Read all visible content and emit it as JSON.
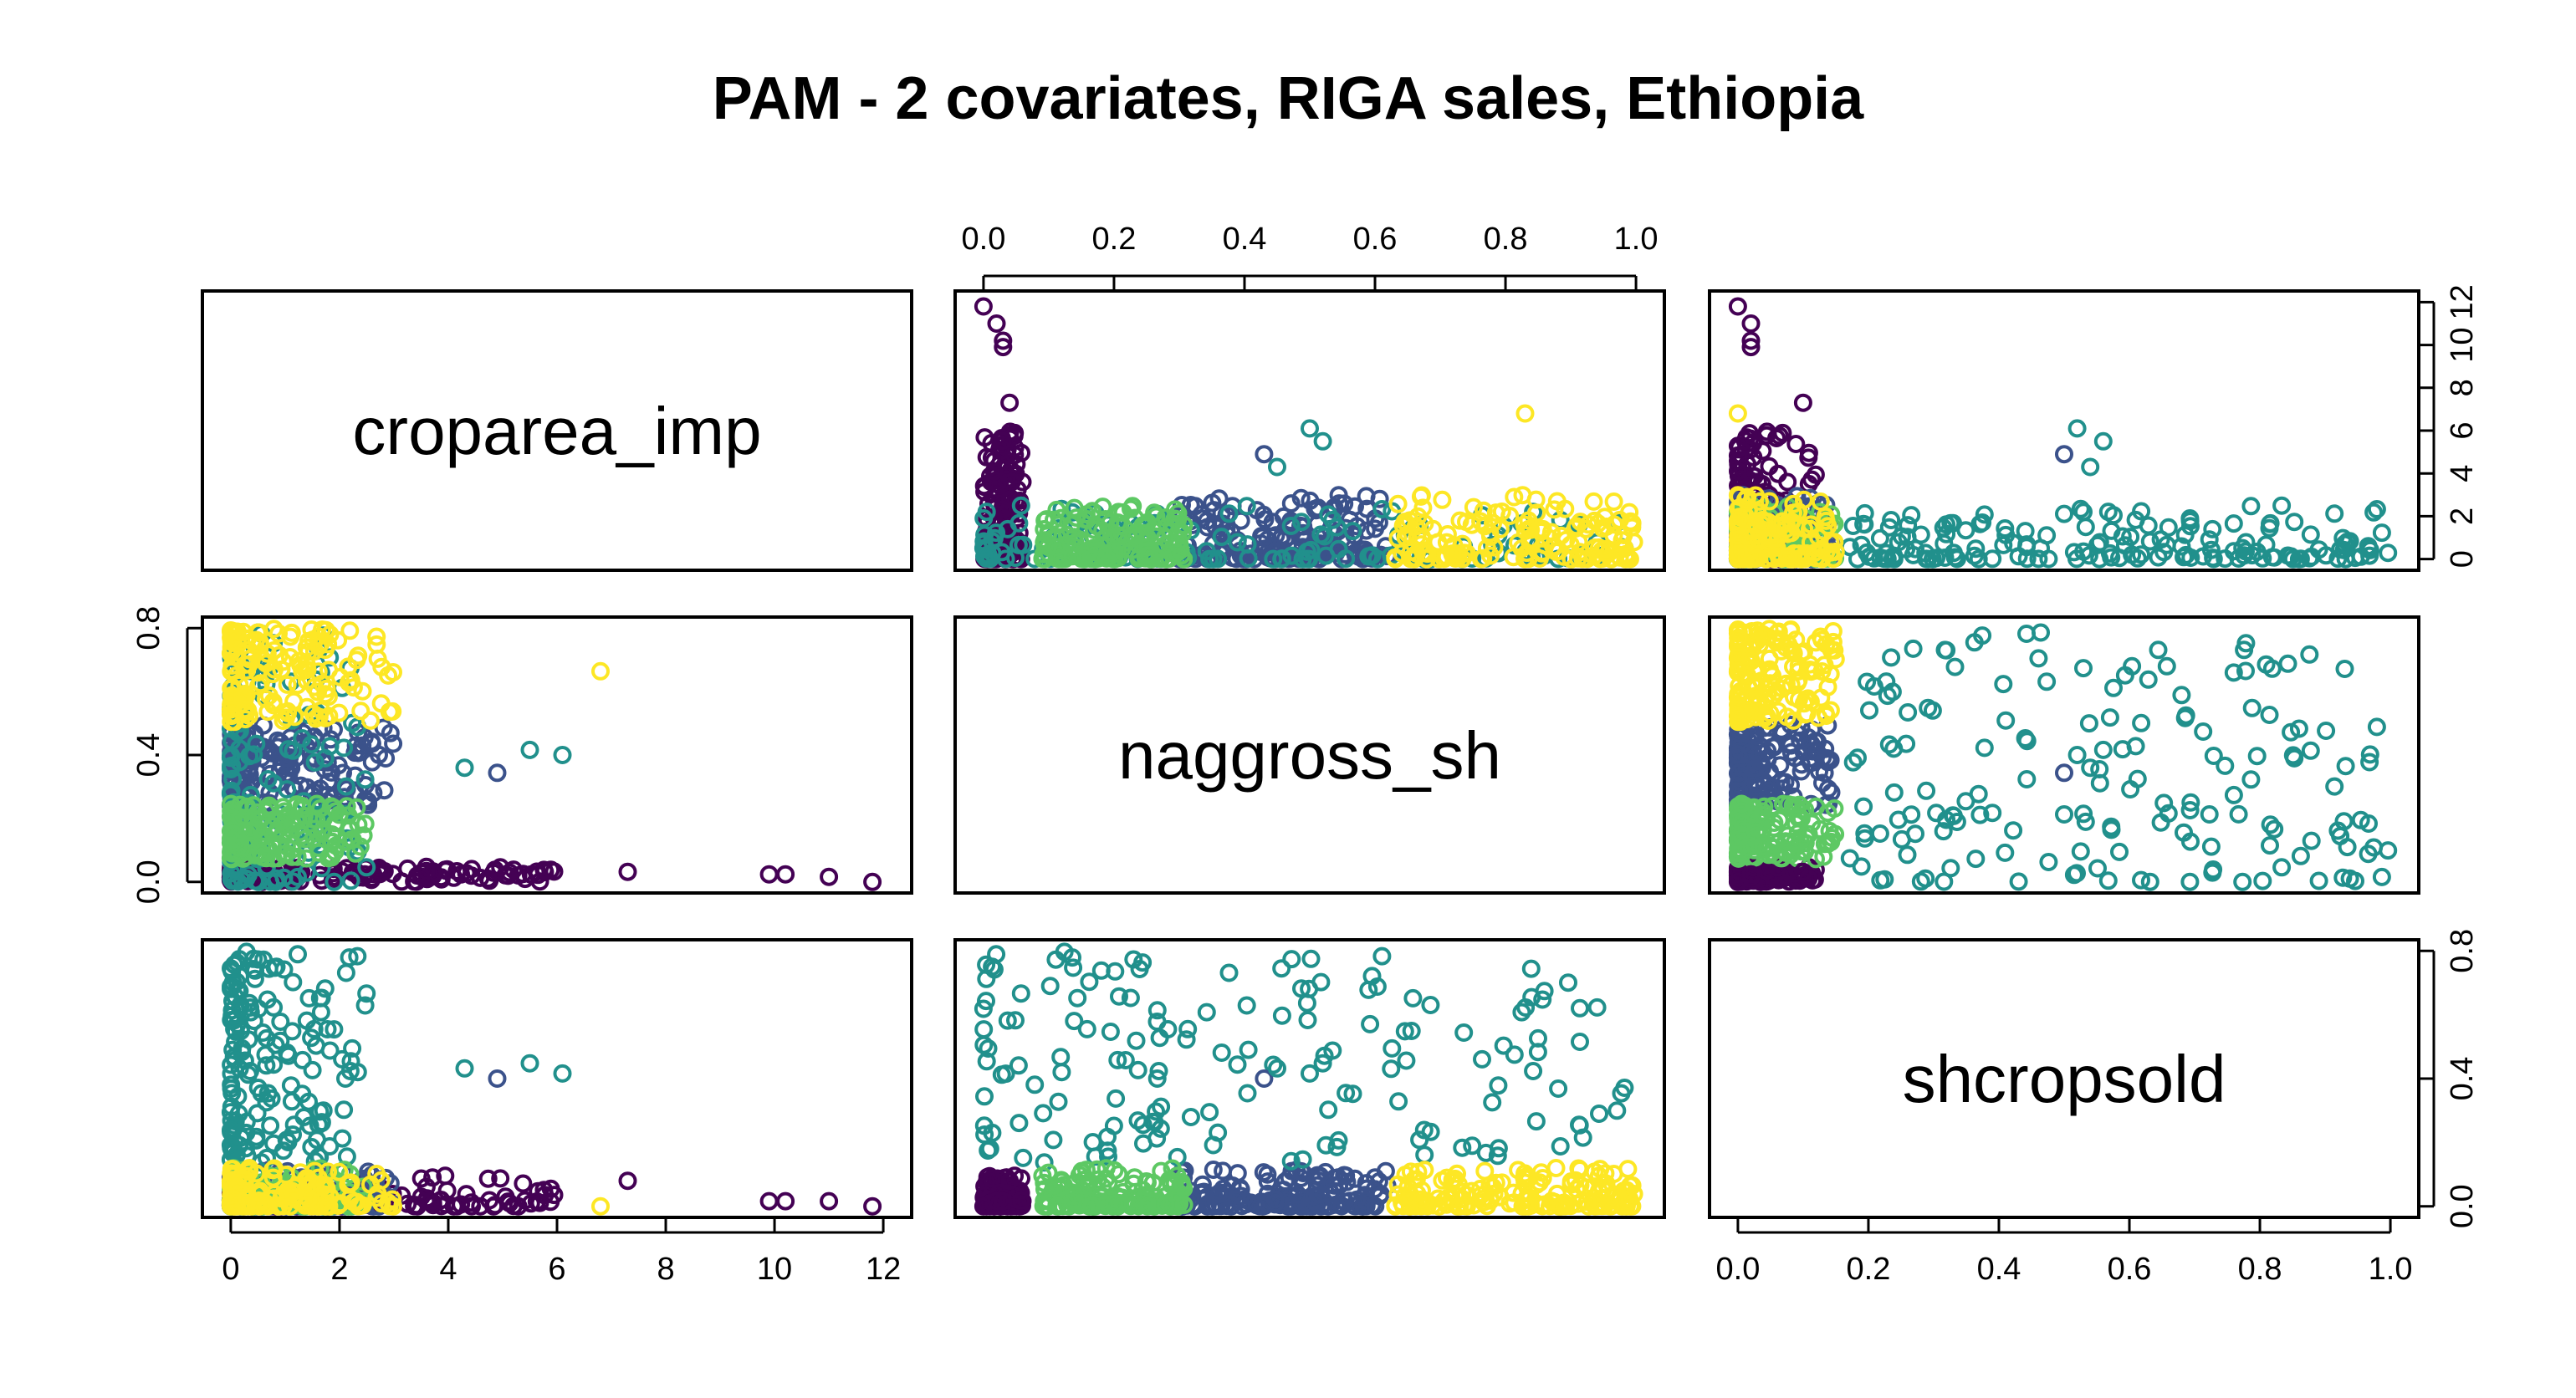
{
  "title": "PAM - 2 covariates, RIGA sales, Ethiopia",
  "chart_data": {
    "type": "scatter",
    "subtype": "scatterplot-matrix",
    "title": "PAM - 2 covariates, RIGA sales, Ethiopia",
    "variables": [
      "croparea_imp",
      "naggross_sh",
      "shcropsold"
    ],
    "axes": {
      "croparea_imp": {
        "range": [
          0,
          12
        ],
        "ticks": [
          "0",
          "2",
          "4",
          "6",
          "8",
          "10",
          "12"
        ]
      },
      "naggross_sh": {
        "range": [
          0,
          1
        ],
        "ticks_top": [
          "0.0",
          "0.2",
          "0.4",
          "0.6",
          "0.8",
          "1.0"
        ],
        "ticks_left": [
          "0.0",
          "0.4",
          "0.8"
        ]
      },
      "shcropsold": {
        "range": [
          0,
          1
        ],
        "ticks_bottom": [
          "0.0",
          "0.2",
          "0.4",
          "0.6",
          "0.8",
          "1.0"
        ],
        "ticks_right": [
          "0.0",
          "0.4",
          "0.8"
        ]
      }
    },
    "croparea_ticks_right": [
      "0",
      "2",
      "4",
      "6",
      "8",
      "10",
      "12"
    ],
    "grid": false,
    "legend": "none",
    "cluster_colors": [
      "#440154",
      "#3B528B",
      "#21908C",
      "#5DC863",
      "#FDE725"
    ],
    "clusters": [
      {
        "color": "#440154",
        "croparea_imp": [
          0,
          6
        ],
        "naggross_sh": [
          0.0,
          0.06
        ],
        "shcropsold": [
          0.0,
          0.12
        ]
      },
      {
        "color": "#3B528B",
        "croparea_imp": [
          0,
          3
        ],
        "naggross_sh": [
          0.3,
          0.62
        ],
        "shcropsold": [
          0.0,
          0.15
        ]
      },
      {
        "color": "#21908C",
        "croparea_imp": [
          0,
          2.5
        ],
        "naggross_sh": [
          0.0,
          1.0
        ],
        "shcropsold": [
          0.17,
          1.0
        ]
      },
      {
        "color": "#5DC863",
        "croparea_imp": [
          0,
          2.5
        ],
        "naggross_sh": [
          0.09,
          0.31
        ],
        "shcropsold": [
          0.0,
          0.15
        ]
      },
      {
        "color": "#FDE725",
        "croparea_imp": [
          0,
          3
        ],
        "naggross_sh": [
          0.63,
          1.0
        ],
        "shcropsold": [
          0.0,
          0.15
        ]
      }
    ],
    "outliers": [
      {
        "croparea_imp": 11.8,
        "naggross_sh": 0.0,
        "shcropsold": 0.0,
        "color": "#440154"
      },
      {
        "croparea_imp": 11.0,
        "naggross_sh": 0.02,
        "shcropsold": 0.02,
        "color": "#440154"
      },
      {
        "croparea_imp": 10.2,
        "naggross_sh": 0.03,
        "shcropsold": 0.02,
        "color": "#440154"
      },
      {
        "croparea_imp": 9.9,
        "naggross_sh": 0.03,
        "shcropsold": 0.02,
        "color": "#440154"
      },
      {
        "croparea_imp": 7.3,
        "naggross_sh": 0.04,
        "shcropsold": 0.1,
        "color": "#440154"
      },
      {
        "croparea_imp": 6.8,
        "naggross_sh": 0.83,
        "shcropsold": 0.0,
        "color": "#FDE725"
      },
      {
        "croparea_imp": 6.1,
        "naggross_sh": 0.5,
        "shcropsold": 0.52,
        "color": "#21908C"
      },
      {
        "croparea_imp": 5.5,
        "naggross_sh": 0.52,
        "shcropsold": 0.56,
        "color": "#21908C"
      },
      {
        "croparea_imp": 4.9,
        "naggross_sh": 0.43,
        "shcropsold": 0.5,
        "color": "#3B528B"
      },
      {
        "croparea_imp": 4.3,
        "naggross_sh": 0.45,
        "shcropsold": 0.54,
        "color": "#21908C"
      }
    ]
  }
}
